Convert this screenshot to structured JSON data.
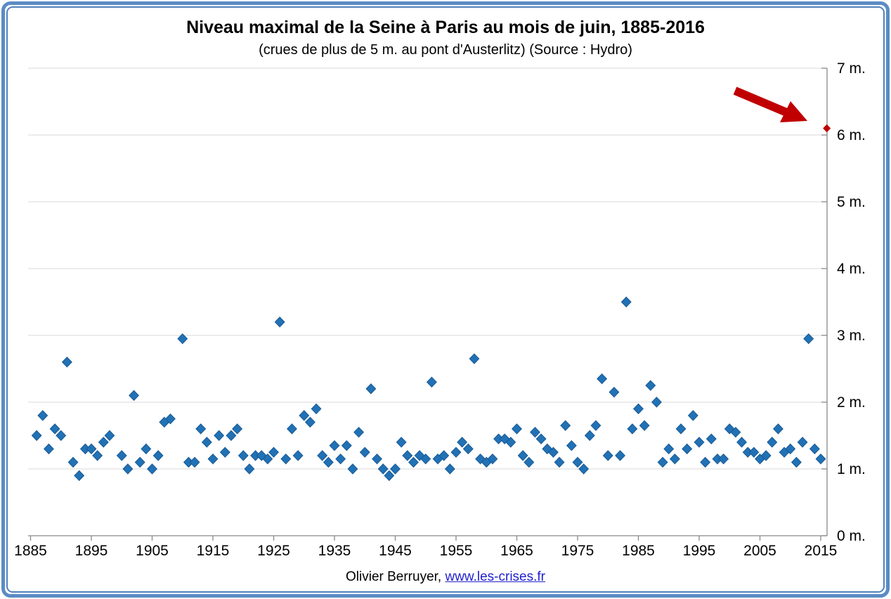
{
  "title": "Niveau maximal de la Seine à Paris au mois de juin, 1885-2016",
  "subtitle": "(crues de plus de 5 m. au pont d'Austerlitz) (Source : Hydro)",
  "footer": {
    "credit": "Olivier Berruyer,",
    "link": "www.les-crises.fr"
  },
  "colors": {
    "border": "#4f81bd",
    "marker": "#2171b5",
    "marker_edge": "#1a5a94",
    "highlight": "#c00000",
    "gridline": "#d9d9d9",
    "axis": "#898989",
    "text": "#000000",
    "link": "#2222cc"
  },
  "chart_data": {
    "type": "scatter",
    "title": "Niveau maximal de la Seine à Paris au mois de juin, 1885-2016",
    "subtitle": "(crues de plus de 5 m. au pont d'Austerlitz) (Source : Hydro)",
    "xlabel": "",
    "ylabel": "",
    "grid": "horizontal-only",
    "legend": "none",
    "y_axis_side": "right",
    "xlim": [
      1884.5,
      2016.8
    ],
    "ylim": [
      0,
      7
    ],
    "x_ticks": [
      1885,
      1895,
      1905,
      1915,
      1925,
      1935,
      1945,
      1955,
      1965,
      1975,
      1985,
      1995,
      2005,
      2015
    ],
    "y_ticks": [
      0,
      1,
      2,
      3,
      4,
      5,
      6,
      7
    ],
    "y_tick_suffix": " m.",
    "series": [
      {
        "name": "niveau-maximal-juin",
        "marker": "diamond",
        "marker_size": 14,
        "color": "#2171b5",
        "points": [
          [
            1886,
            1.5
          ],
          [
            1887,
            1.8
          ],
          [
            1888,
            1.3
          ],
          [
            1889,
            1.6
          ],
          [
            1890,
            1.5
          ],
          [
            1891,
            2.6
          ],
          [
            1892,
            1.1
          ],
          [
            1893,
            0.9
          ],
          [
            1894,
            1.3
          ],
          [
            1895,
            1.3
          ],
          [
            1896,
            1.2
          ],
          [
            1897,
            1.4
          ],
          [
            1898,
            1.5
          ],
          [
            1900,
            1.2
          ],
          [
            1901,
            1.0
          ],
          [
            1902,
            2.1
          ],
          [
            1903,
            1.1
          ],
          [
            1904,
            1.3
          ],
          [
            1905,
            1.0
          ],
          [
            1906,
            1.2
          ],
          [
            1907,
            1.7
          ],
          [
            1908,
            1.75
          ],
          [
            1910,
            2.95
          ],
          [
            1911,
            1.1
          ],
          [
            1912,
            1.1
          ],
          [
            1913,
            1.6
          ],
          [
            1914,
            1.4
          ],
          [
            1915,
            1.15
          ],
          [
            1916,
            1.5
          ],
          [
            1917,
            1.25
          ],
          [
            1918,
            1.5
          ],
          [
            1919,
            1.6
          ],
          [
            1920,
            1.2
          ],
          [
            1921,
            1.0
          ],
          [
            1922,
            1.2
          ],
          [
            1923,
            1.2
          ],
          [
            1924,
            1.15
          ],
          [
            1925,
            1.25
          ],
          [
            1926,
            3.2
          ],
          [
            1927,
            1.15
          ],
          [
            1928,
            1.6
          ],
          [
            1929,
            1.2
          ],
          [
            1930,
            1.8
          ],
          [
            1931,
            1.7
          ],
          [
            1932,
            1.9
          ],
          [
            1933,
            1.2
          ],
          [
            1934,
            1.1
          ],
          [
            1935,
            1.35
          ],
          [
            1936,
            1.15
          ],
          [
            1937,
            1.35
          ],
          [
            1938,
            1.0
          ],
          [
            1939,
            1.55
          ],
          [
            1940,
            1.25
          ],
          [
            1941,
            2.2
          ],
          [
            1942,
            1.15
          ],
          [
            1943,
            1.0
          ],
          [
            1944,
            0.9
          ],
          [
            1945,
            1.0
          ],
          [
            1946,
            1.4
          ],
          [
            1947,
            1.2
          ],
          [
            1948,
            1.1
          ],
          [
            1949,
            1.2
          ],
          [
            1950,
            1.15
          ],
          [
            1951,
            2.3
          ],
          [
            1952,
            1.15
          ],
          [
            1953,
            1.2
          ],
          [
            1954,
            1.0
          ],
          [
            1955,
            1.25
          ],
          [
            1956,
            1.4
          ],
          [
            1957,
            1.3
          ],
          [
            1958,
            2.65
          ],
          [
            1959,
            1.15
          ],
          [
            1960,
            1.1
          ],
          [
            1961,
            1.15
          ],
          [
            1962,
            1.45
          ],
          [
            1963,
            1.45
          ],
          [
            1964,
            1.4
          ],
          [
            1965,
            1.6
          ],
          [
            1966,
            1.2
          ],
          [
            1967,
            1.1
          ],
          [
            1968,
            1.55
          ],
          [
            1969,
            1.45
          ],
          [
            1970,
            1.3
          ],
          [
            1971,
            1.25
          ],
          [
            1972,
            1.1
          ],
          [
            1973,
            1.65
          ],
          [
            1974,
            1.35
          ],
          [
            1975,
            1.1
          ],
          [
            1976,
            1.0
          ],
          [
            1977,
            1.5
          ],
          [
            1978,
            1.65
          ],
          [
            1979,
            2.35
          ],
          [
            1980,
            1.2
          ],
          [
            1981,
            2.15
          ],
          [
            1982,
            1.2
          ],
          [
            1983,
            3.5
          ],
          [
            1984,
            1.6
          ],
          [
            1985,
            1.9
          ],
          [
            1986,
            1.65
          ],
          [
            1987,
            2.25
          ],
          [
            1988,
            2.0
          ],
          [
            1989,
            1.1
          ],
          [
            1990,
            1.3
          ],
          [
            1991,
            1.15
          ],
          [
            1992,
            1.6
          ],
          [
            1993,
            1.3
          ],
          [
            1994,
            1.8
          ],
          [
            1995,
            1.4
          ],
          [
            1996,
            1.1
          ],
          [
            1997,
            1.45
          ],
          [
            1998,
            1.15
          ],
          [
            1999,
            1.15
          ],
          [
            2000,
            1.6
          ],
          [
            2001,
            1.55
          ],
          [
            2002,
            1.4
          ],
          [
            2003,
            1.25
          ],
          [
            2004,
            1.25
          ],
          [
            2005,
            1.15
          ],
          [
            2006,
            1.2
          ],
          [
            2007,
            1.4
          ],
          [
            2008,
            1.6
          ],
          [
            2009,
            1.25
          ],
          [
            2010,
            1.3
          ],
          [
            2011,
            1.1
          ],
          [
            2012,
            1.4
          ],
          [
            2013,
            2.95
          ],
          [
            2014,
            1.3
          ],
          [
            2015,
            1.15
          ]
        ]
      },
      {
        "name": "juin-2016-highlight",
        "marker": "diamond",
        "marker_size": 10,
        "color": "#c00000",
        "points": [
          [
            2016,
            6.1
          ]
        ]
      }
    ],
    "annotation": {
      "type": "arrow",
      "color": "#c00000",
      "points_to_year": 2016,
      "points_to_value": 6.1
    }
  }
}
